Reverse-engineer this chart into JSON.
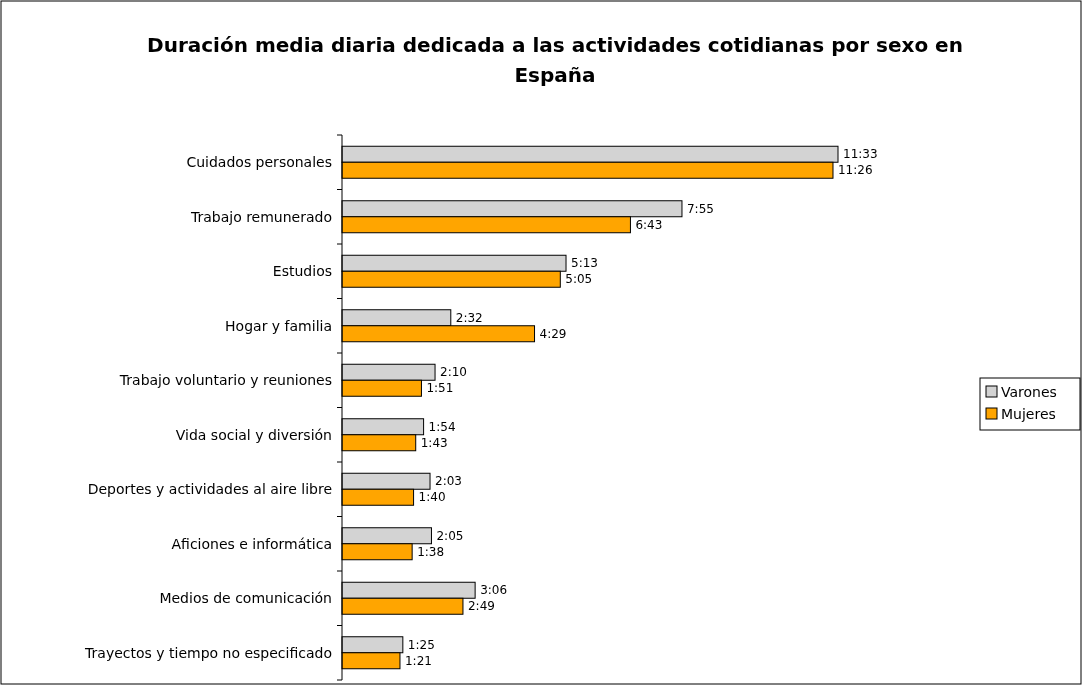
{
  "chart_data": {
    "type": "bar",
    "orientation": "horizontal",
    "title": "Duración media diaria dedicada a las actividades cotidianas por sexo en España",
    "categories": [
      "Cuidados personales",
      "Trabajo remunerado",
      "Estudios",
      "Hogar y familia",
      "Trabajo voluntario y reuniones",
      "Vida social y diversión",
      "Deportes y actividades al aire libre",
      "Aficiones e informática",
      "Medios de comunicación",
      "Trayectos y tiempo no especificado"
    ],
    "series": [
      {
        "name": "Varones",
        "color": "#d3d3d3",
        "values": [
          693,
          475,
          313,
          152,
          130,
          114,
          123,
          125,
          186,
          85
        ],
        "value_labels": [
          "11:33",
          "7:55",
          "5:13",
          "2:32",
          "2:10",
          "1:54",
          "2:03",
          "2:05",
          "3:06",
          "1:25"
        ]
      },
      {
        "name": "Mujeres",
        "color": "#ffa500",
        "values": [
          686,
          403,
          305,
          269,
          111,
          103,
          100,
          98,
          169,
          81
        ],
        "value_labels": [
          "11:26",
          "6:43",
          "5:05",
          "4:29",
          "1:51",
          "1:43",
          "1:40",
          "1:38",
          "2:49",
          "1:21"
        ]
      }
    ],
    "legend": "right",
    "tick_labels": "y"
  }
}
